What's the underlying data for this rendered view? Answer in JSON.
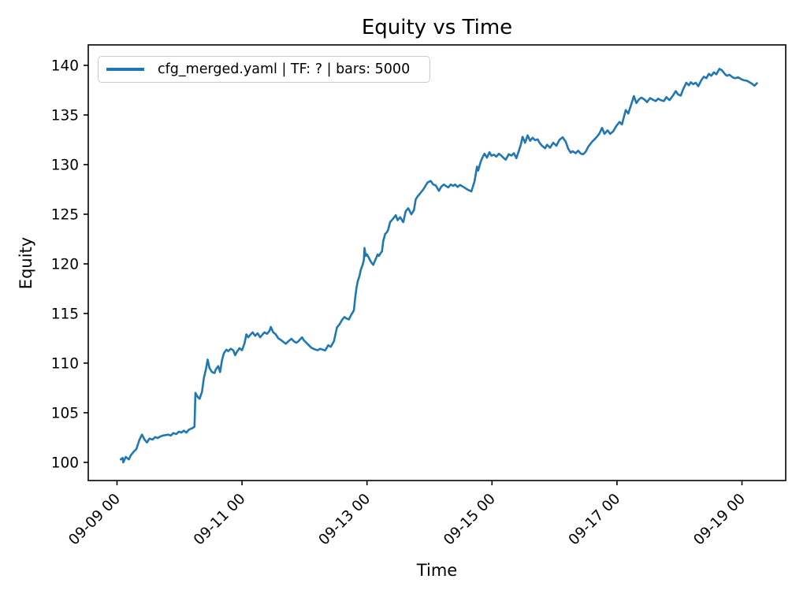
{
  "figure": {
    "background": "#ffffff"
  },
  "chart_data": {
    "type": "line",
    "title": "Equity vs Time",
    "xlabel": "Time",
    "ylabel": "Equity",
    "grid": false,
    "legend_position": "upper left",
    "legend": [
      {
        "label": "cfg_merged.yaml | TF: ? | bars: 5000",
        "color": "#1f77b4"
      }
    ],
    "axis_color": "#000000",
    "y_ticks": [
      100,
      105,
      110,
      115,
      120,
      125,
      130,
      135,
      140
    ],
    "ylim": [
      98.17,
      142.06
    ],
    "x_ticks": {
      "labels": [
        "09-09 00",
        "09-11 00",
        "09-13 00",
        "09-15 00",
        "09-17 00",
        "09-19 00"
      ],
      "positions_days": [
        0,
        2,
        4,
        6,
        8,
        10
      ]
    },
    "xlim_days": [
      -0.46,
      10.7
    ],
    "x_unit": "days relative to tick 09-09 00",
    "series": [
      {
        "name": "cfg_merged.yaml | TF: ? | bars: 5000",
        "color": "#1f77b4",
        "line_width": 2.6,
        "points": [
          [
            0.06,
            100.3
          ],
          [
            0.09,
            100.45
          ],
          [
            0.1,
            100.0
          ],
          [
            0.14,
            100.55
          ],
          [
            0.19,
            100.3
          ],
          [
            0.22,
            100.7
          ],
          [
            0.27,
            101.1
          ],
          [
            0.31,
            101.35
          ],
          [
            0.36,
            102.3
          ],
          [
            0.4,
            102.8
          ],
          [
            0.44,
            102.3
          ],
          [
            0.48,
            102.0
          ],
          [
            0.52,
            102.4
          ],
          [
            0.57,
            102.3
          ],
          [
            0.61,
            102.55
          ],
          [
            0.65,
            102.45
          ],
          [
            0.69,
            102.6
          ],
          [
            0.73,
            102.7
          ],
          [
            0.78,
            102.75
          ],
          [
            0.82,
            102.8
          ],
          [
            0.86,
            102.7
          ],
          [
            0.9,
            102.95
          ],
          [
            0.95,
            102.85
          ],
          [
            0.99,
            103.1
          ],
          [
            1.03,
            103.0
          ],
          [
            1.07,
            103.2
          ],
          [
            1.11,
            103.0
          ],
          [
            1.15,
            103.3
          ],
          [
            1.19,
            103.4
          ],
          [
            1.22,
            103.5
          ],
          [
            1.24,
            103.6
          ],
          [
            1.255,
            107.0
          ],
          [
            1.29,
            106.6
          ],
          [
            1.32,
            106.4
          ],
          [
            1.36,
            107.1
          ],
          [
            1.39,
            108.5
          ],
          [
            1.42,
            109.3
          ],
          [
            1.45,
            110.35
          ],
          [
            1.48,
            109.5
          ],
          [
            1.52,
            109.1
          ],
          [
            1.56,
            109.0
          ],
          [
            1.58,
            109.35
          ],
          [
            1.62,
            109.7
          ],
          [
            1.65,
            109.1
          ],
          [
            1.68,
            110.3
          ],
          [
            1.71,
            111.0
          ],
          [
            1.75,
            111.35
          ],
          [
            1.78,
            111.2
          ],
          [
            1.82,
            111.45
          ],
          [
            1.86,
            111.3
          ],
          [
            1.89,
            110.8
          ],
          [
            1.92,
            111.15
          ],
          [
            1.96,
            111.5
          ],
          [
            2.0,
            111.3
          ],
          [
            2.04,
            112.0
          ],
          [
            2.07,
            112.9
          ],
          [
            2.1,
            112.6
          ],
          [
            2.14,
            112.9
          ],
          [
            2.17,
            113.1
          ],
          [
            2.21,
            112.75
          ],
          [
            2.25,
            113.0
          ],
          [
            2.29,
            112.6
          ],
          [
            2.33,
            112.9
          ],
          [
            2.36,
            113.1
          ],
          [
            2.4,
            112.95
          ],
          [
            2.44,
            113.25
          ],
          [
            2.46,
            113.65
          ],
          [
            2.5,
            113.1
          ],
          [
            2.54,
            112.9
          ],
          [
            2.58,
            112.5
          ],
          [
            2.63,
            112.3
          ],
          [
            2.67,
            112.1
          ],
          [
            2.7,
            111.95
          ],
          [
            2.75,
            112.25
          ],
          [
            2.79,
            112.45
          ],
          [
            2.83,
            112.2
          ],
          [
            2.87,
            112.05
          ],
          [
            2.91,
            112.25
          ],
          [
            2.96,
            112.6
          ],
          [
            2.99,
            112.3
          ],
          [
            3.03,
            112.05
          ],
          [
            3.07,
            111.8
          ],
          [
            3.11,
            111.55
          ],
          [
            3.16,
            111.4
          ],
          [
            3.21,
            111.3
          ],
          [
            3.25,
            111.45
          ],
          [
            3.29,
            111.35
          ],
          [
            3.33,
            111.27
          ],
          [
            3.38,
            111.8
          ],
          [
            3.42,
            111.65
          ],
          [
            3.47,
            112.2
          ],
          [
            3.52,
            113.6
          ],
          [
            3.56,
            113.9
          ],
          [
            3.6,
            114.35
          ],
          [
            3.64,
            114.65
          ],
          [
            3.67,
            114.5
          ],
          [
            3.71,
            114.4
          ],
          [
            3.75,
            114.9
          ],
          [
            3.79,
            115.3
          ],
          [
            3.81,
            116.5
          ],
          [
            3.83,
            117.5
          ],
          [
            3.85,
            118.2
          ],
          [
            3.88,
            118.8
          ],
          [
            3.9,
            119.4
          ],
          [
            3.93,
            119.9
          ],
          [
            3.95,
            120.4
          ],
          [
            3.96,
            121.6
          ],
          [
            3.98,
            120.8
          ],
          [
            4.0,
            120.95
          ],
          [
            4.03,
            120.6
          ],
          [
            4.05,
            120.35
          ],
          [
            4.08,
            120.05
          ],
          [
            4.1,
            119.9
          ],
          [
            4.14,
            120.5
          ],
          [
            4.17,
            120.95
          ],
          [
            4.19,
            120.8
          ],
          [
            4.22,
            121.1
          ],
          [
            4.24,
            121.25
          ],
          [
            4.26,
            122.3
          ],
          [
            4.29,
            123.0
          ],
          [
            4.32,
            123.2
          ],
          [
            4.34,
            123.45
          ],
          [
            4.37,
            124.2
          ],
          [
            4.41,
            124.5
          ],
          [
            4.46,
            124.9
          ],
          [
            4.49,
            124.4
          ],
          [
            4.53,
            124.7
          ],
          [
            4.58,
            124.2
          ],
          [
            4.62,
            125.3
          ],
          [
            4.66,
            125.6
          ],
          [
            4.71,
            125.0
          ],
          [
            4.75,
            125.4
          ],
          [
            4.78,
            126.5
          ],
          [
            4.81,
            126.8
          ],
          [
            4.85,
            127.1
          ],
          [
            4.9,
            127.5
          ],
          [
            4.94,
            127.9
          ],
          [
            4.97,
            128.2
          ],
          [
            5.02,
            128.35
          ],
          [
            5.06,
            128.0
          ],
          [
            5.1,
            127.9
          ],
          [
            5.15,
            127.35
          ],
          [
            5.19,
            127.8
          ],
          [
            5.23,
            128.0
          ],
          [
            5.26,
            127.85
          ],
          [
            5.3,
            127.7
          ],
          [
            5.34,
            128.0
          ],
          [
            5.38,
            127.85
          ],
          [
            5.41,
            128.0
          ],
          [
            5.45,
            127.75
          ],
          [
            5.49,
            127.95
          ],
          [
            5.53,
            127.8
          ],
          [
            5.58,
            127.6
          ],
          [
            5.62,
            127.45
          ],
          [
            5.67,
            127.3
          ],
          [
            5.72,
            128.3
          ],
          [
            5.76,
            129.8
          ],
          [
            5.78,
            129.4
          ],
          [
            5.82,
            130.3
          ],
          [
            5.85,
            130.75
          ],
          [
            5.88,
            131.1
          ],
          [
            5.92,
            130.7
          ],
          [
            5.96,
            131.25
          ],
          [
            5.99,
            130.9
          ],
          [
            6.03,
            131.0
          ],
          [
            6.07,
            130.8
          ],
          [
            6.11,
            131.1
          ],
          [
            6.15,
            130.9
          ],
          [
            6.18,
            130.7
          ],
          [
            6.22,
            130.5
          ],
          [
            6.27,
            131.05
          ],
          [
            6.31,
            130.9
          ],
          [
            6.35,
            131.15
          ],
          [
            6.39,
            130.65
          ],
          [
            6.42,
            131.2
          ],
          [
            6.46,
            132.0
          ],
          [
            6.49,
            132.8
          ],
          [
            6.53,
            132.2
          ],
          [
            6.57,
            132.95
          ],
          [
            6.61,
            132.4
          ],
          [
            6.65,
            132.7
          ],
          [
            6.69,
            132.45
          ],
          [
            6.73,
            132.55
          ],
          [
            6.76,
            132.2
          ],
          [
            6.8,
            131.9
          ],
          [
            6.85,
            131.65
          ],
          [
            6.88,
            132.0
          ],
          [
            6.93,
            131.7
          ],
          [
            6.98,
            132.2
          ],
          [
            7.03,
            131.9
          ],
          [
            7.08,
            132.5
          ],
          [
            7.13,
            132.75
          ],
          [
            7.18,
            132.3
          ],
          [
            7.22,
            131.6
          ],
          [
            7.26,
            131.2
          ],
          [
            7.29,
            131.35
          ],
          [
            7.34,
            131.15
          ],
          [
            7.38,
            131.4
          ],
          [
            7.42,
            131.1
          ],
          [
            7.46,
            131.05
          ],
          [
            7.5,
            131.3
          ],
          [
            7.54,
            131.8
          ],
          [
            7.6,
            132.3
          ],
          [
            7.65,
            132.6
          ],
          [
            7.69,
            132.9
          ],
          [
            7.72,
            133.15
          ],
          [
            7.76,
            133.7
          ],
          [
            7.8,
            133.1
          ],
          [
            7.85,
            133.45
          ],
          [
            7.89,
            133.1
          ],
          [
            7.94,
            133.35
          ],
          [
            7.99,
            133.9
          ],
          [
            8.04,
            134.3
          ],
          [
            8.08,
            134.05
          ],
          [
            8.14,
            135.5
          ],
          [
            8.18,
            135.15
          ],
          [
            8.23,
            136.1
          ],
          [
            8.27,
            136.9
          ],
          [
            8.31,
            136.2
          ],
          [
            8.35,
            136.55
          ],
          [
            8.39,
            136.75
          ],
          [
            8.44,
            136.55
          ],
          [
            8.48,
            136.3
          ],
          [
            8.53,
            136.7
          ],
          [
            8.57,
            136.55
          ],
          [
            8.62,
            136.4
          ],
          [
            8.66,
            136.65
          ],
          [
            8.7,
            136.5
          ],
          [
            8.75,
            136.4
          ],
          [
            8.79,
            136.8
          ],
          [
            8.84,
            136.5
          ],
          [
            8.89,
            136.9
          ],
          [
            8.94,
            137.4
          ],
          [
            8.98,
            137.05
          ],
          [
            9.02,
            136.95
          ],
          [
            9.06,
            137.6
          ],
          [
            9.11,
            138.25
          ],
          [
            9.15,
            138.0
          ],
          [
            9.18,
            138.3
          ],
          [
            9.22,
            138.1
          ],
          [
            9.26,
            138.25
          ],
          [
            9.3,
            137.9
          ],
          [
            9.35,
            138.5
          ],
          [
            9.39,
            138.85
          ],
          [
            9.43,
            138.7
          ],
          [
            9.47,
            139.15
          ],
          [
            9.51,
            138.95
          ],
          [
            9.55,
            139.3
          ],
          [
            9.59,
            139.1
          ],
          [
            9.64,
            139.65
          ],
          [
            9.68,
            139.5
          ],
          [
            9.73,
            139.1
          ],
          [
            9.76,
            138.95
          ],
          [
            9.8,
            139.05
          ],
          [
            9.85,
            138.8
          ],
          [
            9.89,
            138.7
          ],
          [
            9.94,
            138.8
          ],
          [
            9.99,
            138.6
          ],
          [
            10.03,
            138.5
          ],
          [
            10.08,
            138.45
          ],
          [
            10.12,
            138.3
          ],
          [
            10.16,
            138.15
          ],
          [
            10.2,
            137.95
          ],
          [
            10.24,
            138.2
          ]
        ]
      }
    ]
  }
}
